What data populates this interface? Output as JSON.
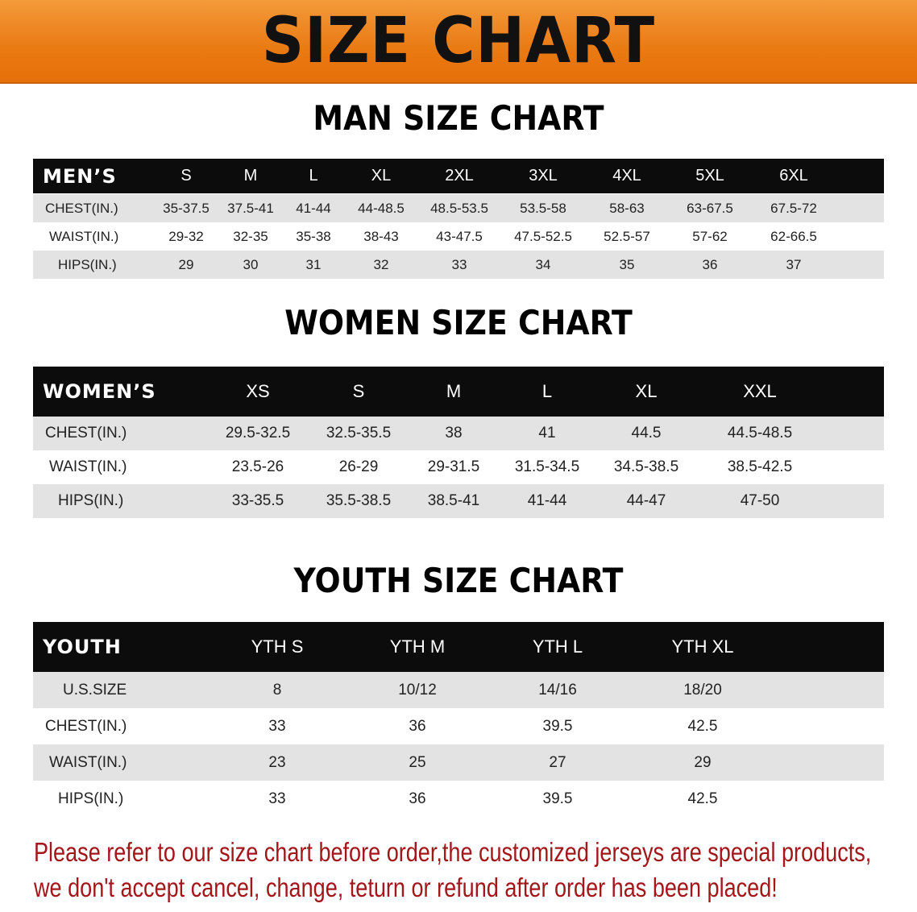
{
  "banner_title": "SIZE CHART",
  "men": {
    "title": "MAN SIZE CHART",
    "corner": "MEN’S",
    "sizes": [
      "S",
      "M",
      "L",
      "XL",
      "2XL",
      "3XL",
      "4XL",
      "5XL",
      "6XL"
    ],
    "rows": [
      {
        "label": "CHEST(IN.)",
        "values": [
          "35-37.5",
          "37.5-41",
          "41-44",
          "44-48.5",
          "48.5-53.5",
          "53.5-58",
          "58-63",
          "63-67.5",
          "67.5-72"
        ]
      },
      {
        "label": "WAIST(IN.)",
        "values": [
          "29-32",
          "32-35",
          "35-38",
          "38-43",
          "43-47.5",
          "47.5-52.5",
          "52.5-57",
          "57-62",
          "62-66.5"
        ]
      },
      {
        "label": "HIPS(IN.)",
        "values": [
          "29",
          "30",
          "31",
          "32",
          "33",
          "34",
          "35",
          "36",
          "37"
        ]
      }
    ]
  },
  "women": {
    "title": "WOMEN SIZE CHART",
    "corner": "WOMEN’S",
    "sizes": [
      "XS",
      "S",
      "M",
      "L",
      "XL",
      "XXL"
    ],
    "rows": [
      {
        "label": "CHEST(IN.)",
        "values": [
          "29.5-32.5",
          "32.5-35.5",
          "38",
          "41",
          "44.5",
          "44.5-48.5"
        ]
      },
      {
        "label": "WAIST(IN.)",
        "values": [
          "23.5-26",
          "26-29",
          "29-31.5",
          "31.5-34.5",
          "34.5-38.5",
          "38.5-42.5"
        ]
      },
      {
        "label": "HIPS(IN.)",
        "values": [
          "33-35.5",
          "35.5-38.5",
          "38.5-41",
          "41-44",
          "44-47",
          "47-50"
        ]
      }
    ]
  },
  "youth": {
    "title": "YOUTH SIZE CHART",
    "corner": "YOUTH",
    "sizes": [
      "YTH S",
      "YTH M",
      "YTH L",
      "YTH XL"
    ],
    "rows": [
      {
        "label": "U.S.SIZE",
        "values": [
          "8",
          "10/12",
          "14/16",
          "18/20"
        ]
      },
      {
        "label": "CHEST(IN.)",
        "values": [
          "33",
          "36",
          "39.5",
          "42.5"
        ]
      },
      {
        "label": "WAIST(IN.)",
        "values": [
          "23",
          "25",
          "27",
          "29"
        ]
      },
      {
        "label": "HIPS(IN.)",
        "values": [
          "33",
          "36",
          "39.5",
          "42.5"
        ]
      }
    ]
  },
  "notice": {
    "line1": "Please refer to our size chart before order,the customized jerseys are special products,",
    "line2": "we don't accept cancel, change, teturn or refund after order has been placed!"
  },
  "colors": {
    "banner": "#ea7a12",
    "header_row": "#0c0c0c",
    "stripe": "#e3e3e3",
    "notice": "#a3161a"
  }
}
